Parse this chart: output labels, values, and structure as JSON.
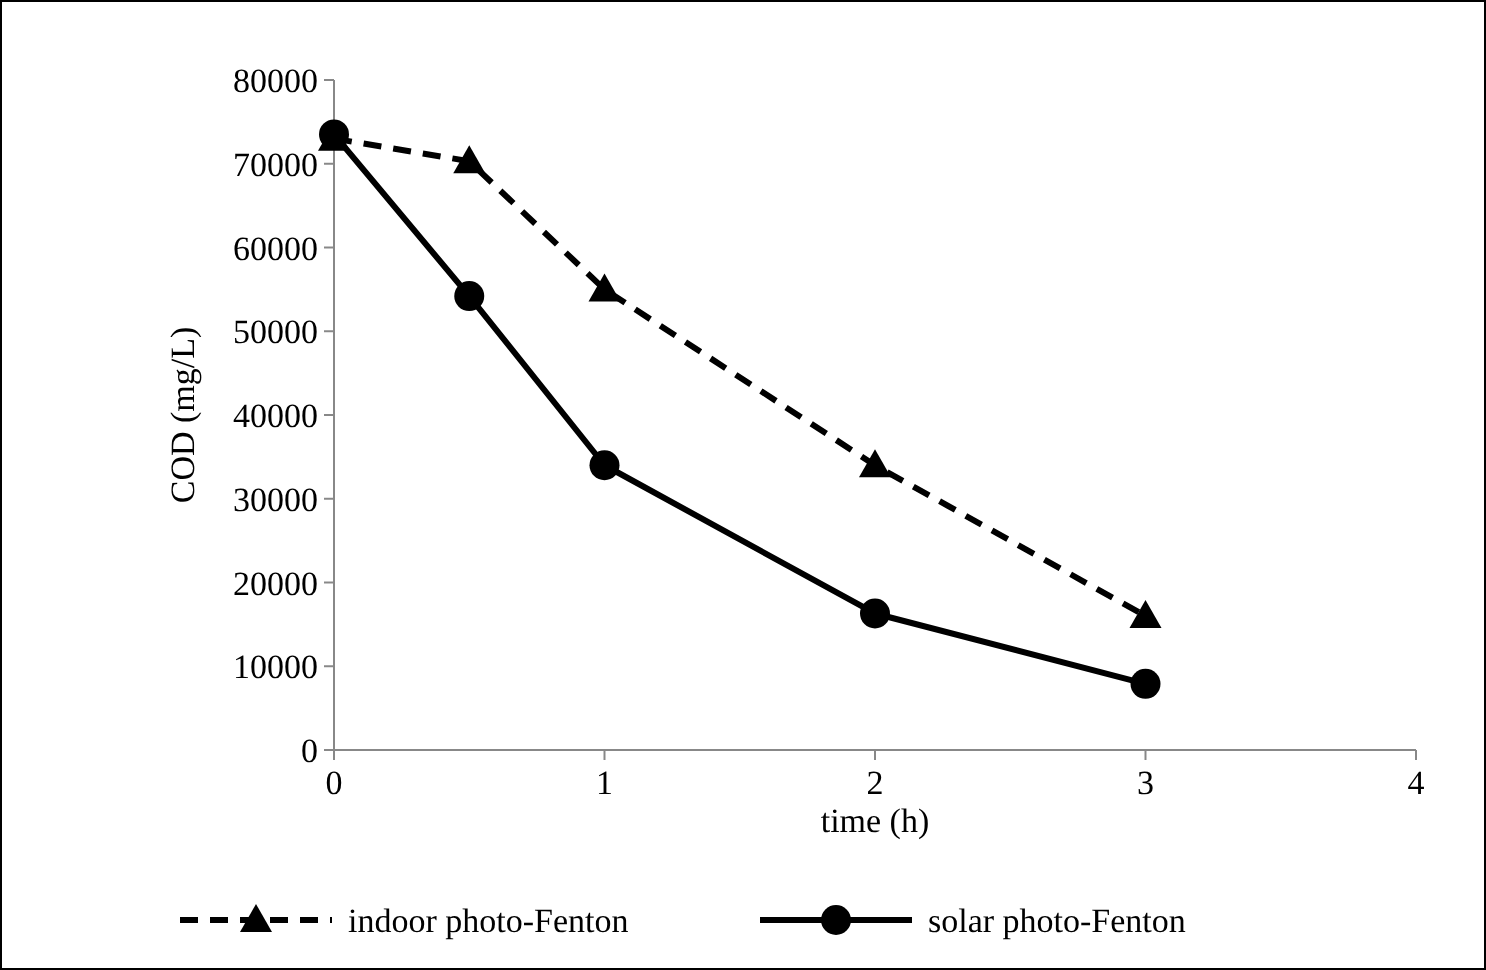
{
  "chart_data": {
    "type": "line",
    "xlabel": "time (h)",
    "ylabel": "COD (mg/L)",
    "xlim": [
      0,
      4
    ],
    "xticks": [
      0,
      1,
      2,
      3,
      4
    ],
    "ylim": [
      0,
      80000
    ],
    "yticks": [
      0,
      10000,
      20000,
      30000,
      40000,
      50000,
      60000,
      70000,
      80000
    ],
    "grid": false,
    "legend": "bottom",
    "series": [
      {
        "name": "indoor photo-Fenton",
        "color": "#000000",
        "x": [
          0,
          0.5,
          1,
          2,
          3
        ],
        "values": [
          73000,
          70300,
          55000,
          34000,
          16000
        ],
        "marker": "triangle",
        "line_style": "dashed"
      },
      {
        "name": "solar photo-Fenton",
        "color": "#000000",
        "x": [
          0,
          0.5,
          1,
          2,
          3
        ],
        "values": [
          73500,
          54200,
          34000,
          16300,
          7900
        ],
        "marker": "circle",
        "line_style": "solid"
      }
    ]
  }
}
